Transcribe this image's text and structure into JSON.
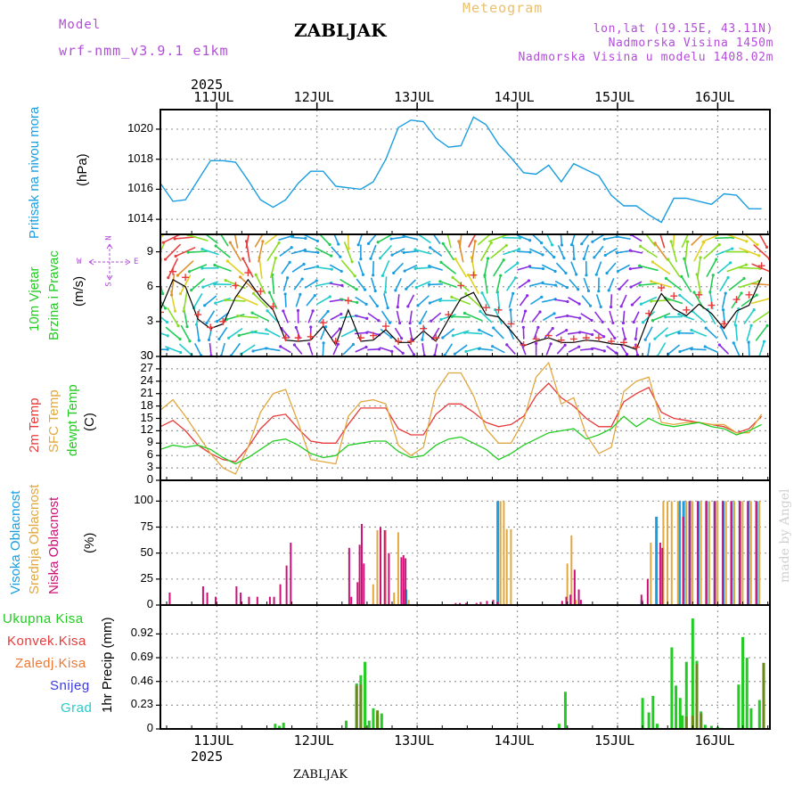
{
  "header": {
    "model_label": "Model",
    "model_name": "wrf-nmm_v3.9.1 e1km",
    "city": "ZABLJAK",
    "meteogram": "Meteogram",
    "coords": "lon,lat (19.15E, 43.11N)",
    "altitude": "Nadmorska Visina 1450m",
    "model_altitude": "Nadmorska Visina u modelu 1408.02m",
    "watermark": "made by Angel",
    "footer_city": "ZABLJAK"
  },
  "colors": {
    "purple": "#b34dd9",
    "orange": "#e0b060",
    "blue": "#1a9ee0",
    "red": "#e83a3a",
    "green": "#22cc22",
    "black": "#000000",
    "orange_sfc": "#e0a840",
    "magenta": "#cc1177",
    "olive": "#6a8a18",
    "dark_green": "#556b1a"
  },
  "time_axis": {
    "year": "2025",
    "days": [
      "11JUL",
      "12JUL",
      "13JUL",
      "14JUL",
      "15JUL",
      "16JUL"
    ]
  },
  "panels": {
    "pressure": {
      "title": "Pritisak na nivou mora",
      "unit": "(hPa)",
      "ticks": [
        "1014",
        "1016",
        "1018",
        "1020"
      ]
    },
    "wind": {
      "title_line1": "10m Vjetar",
      "title_line2": "Brzina i Pravac",
      "unit": "(m/s)",
      "ticks": [
        "0",
        "3",
        "6",
        "9"
      ],
      "compass_n": "N",
      "compass_w": "W",
      "compass_e": "E",
      "compass_s": "S"
    },
    "temperature": {
      "line1": "2m Temp",
      "line2": "SFC Temp",
      "line3": "dewpt Temp",
      "unit": "(C)",
      "ticks": [
        "0",
        "3",
        "6",
        "9",
        "12",
        "15",
        "18",
        "21",
        "24",
        "27",
        "30"
      ]
    },
    "clouds": {
      "line1": "Visoka Oblacnost",
      "line2": "Srednja Oblacnost",
      "line3": "Niska Oblacnost",
      "unit": "(%)",
      "ticks": [
        "0",
        "25",
        "50",
        "75",
        "100"
      ]
    },
    "precip": {
      "legend": [
        "Ukupna Kisa",
        "Konvek.Kisa",
        "Zaledj.Kisa",
        "Snijeg",
        "Grad"
      ],
      "unit": "1hr Precip (mm)",
      "ticks": [
        "0",
        "0.23",
        "0.46",
        "0.69",
        "0.92"
      ]
    }
  },
  "chart_data": [
    {
      "type": "line",
      "title": "Pritisak na nivou mora",
      "ylabel": "(hPa)",
      "ylim": [
        1013.0,
        1021.3
      ],
      "x": [
        0,
        3,
        6,
        9,
        12,
        15,
        18,
        21,
        24,
        27,
        30,
        33,
        36,
        39,
        42,
        45,
        48,
        51,
        54,
        57,
        60,
        63,
        66,
        69,
        72,
        75,
        78,
        81,
        84,
        87,
        90,
        93,
        96,
        99,
        102,
        105,
        108,
        111,
        114,
        117,
        120,
        123,
        126,
        129,
        132,
        135,
        138,
        141,
        144
      ],
      "series": [
        {
          "name": "",
          "values": [
            1016.4,
            1015.2,
            1015.3,
            1016.6,
            1017.9,
            1017.9,
            1017.8,
            1016.6,
            1015.3,
            1014.8,
            1015.3,
            1016.4,
            1017.2,
            1017.2,
            1016.2,
            1016.1,
            1016.0,
            1016.5,
            1018.0,
            1020.1,
            1020.6,
            1020.5,
            1019.4,
            1018.8,
            1018.9,
            1020.8,
            1020.3,
            1019.0,
            1018.1,
            1017.1,
            1017.0,
            1017.6,
            1016.5,
            1017.7,
            1017.3,
            1016.9,
            1015.6,
            1014.9,
            1014.9,
            1014.3,
            1013.8,
            1015.4,
            1015.4,
            1015.2,
            1015.0,
            1015.7,
            1015.6,
            1014.7,
            1014.7
          ]
        }
      ]
    },
    {
      "type": "line",
      "title": "10m Vjetar Brzina i Pravac",
      "ylabel": "(m/s)",
      "ylim": [
        0,
        10.5
      ],
      "x": [
        0,
        3,
        6,
        9,
        12,
        15,
        18,
        21,
        24,
        27,
        30,
        33,
        36,
        39,
        42,
        45,
        48,
        51,
        54,
        57,
        60,
        63,
        66,
        69,
        72,
        75,
        78,
        81,
        84,
        87,
        90,
        93,
        96,
        99,
        102,
        105,
        108,
        111,
        114,
        117,
        120,
        123,
        126,
        129,
        132,
        135,
        138,
        141,
        144
      ],
      "series": [
        {
          "name": "",
          "values": [
            4.0,
            6.6,
            6.0,
            3.2,
            2.4,
            2.8,
            5.1,
            6.6,
            5.1,
            4.0,
            1.4,
            1.3,
            1.4,
            2.6,
            1.0,
            4.0,
            1.3,
            1.4,
            2.3,
            1.2,
            1.2,
            2.2,
            1.3,
            3.2,
            5.0,
            5.5,
            3.6,
            3.4,
            2.2,
            0.9,
            1.3,
            1.6,
            1.2,
            1.2,
            1.4,
            1.3,
            1.1,
            1.0,
            0.6,
            3.4,
            5.4,
            4.1,
            3.5,
            4.5,
            3.7,
            2.4,
            3.9,
            4.4,
            6.8
          ]
        },
        {
          "name": "",
          "values": [
            3.8,
            7.3,
            6.8,
            3.6,
            2.5,
            3.0,
            6.1,
            7.2,
            5.6,
            4.3,
            1.6,
            1.6,
            1.7,
            2.9,
            1.3,
            4.8,
            1.6,
            1.8,
            2.6,
            1.3,
            1.3,
            2.4,
            1.6,
            3.6,
            6.1,
            7.0,
            4.2,
            4.0,
            2.8,
            1.0,
            1.5,
            1.8,
            1.4,
            1.5,
            1.6,
            1.6,
            1.3,
            1.2,
            0.8,
            3.7,
            5.9,
            5.2,
            4.0,
            5.3,
            4.4,
            2.8,
            4.9,
            5.3,
            7.8
          ]
        }
      ]
    },
    {
      "type": "line",
      "title": "",
      "ylabel": "(C)",
      "ylim": [
        0,
        30
      ],
      "x": [
        0,
        3,
        6,
        9,
        12,
        15,
        18,
        21,
        24,
        27,
        30,
        33,
        36,
        39,
        42,
        45,
        48,
        51,
        54,
        57,
        60,
        63,
        66,
        69,
        72,
        75,
        78,
        81,
        84,
        87,
        90,
        93,
        96,
        99,
        102,
        105,
        108,
        111,
        114,
        117,
        120,
        123,
        126,
        129,
        132,
        135,
        138,
        141,
        144
      ],
      "series": [
        {
          "name": "2m Temp",
          "values": [
            13.0,
            14.5,
            12.0,
            8.5,
            6.5,
            5.0,
            4.5,
            8.0,
            12.5,
            15.5,
            16.0,
            12.5,
            9.5,
            9.0,
            9.0,
            13.5,
            17.5,
            17.5,
            17.5,
            12.5,
            11.0,
            11.0,
            16.0,
            18.5,
            18.5,
            16.5,
            14.0,
            13.0,
            13.5,
            15.5,
            20.5,
            23.5,
            20.0,
            18.0,
            15.0,
            13.0,
            13.0,
            19.0,
            21.0,
            22.5,
            16.5,
            15.0,
            14.5,
            14.0,
            13.5,
            13.0,
            11.5,
            12.5,
            15.5
          ]
        },
        {
          "name": "SFC Temp",
          "values": [
            17.0,
            19.5,
            15.5,
            11.0,
            6.5,
            3.0,
            1.5,
            8.0,
            16.5,
            21.0,
            22.0,
            14.0,
            5.0,
            4.5,
            4.0,
            15.5,
            19.0,
            19.5,
            18.5,
            8.5,
            6.0,
            8.0,
            21.5,
            26.0,
            26.0,
            20.5,
            12.5,
            9.0,
            9.0,
            14.5,
            25.0,
            28.5,
            18.5,
            20.0,
            11.0,
            6.5,
            8.0,
            21.5,
            24.0,
            25.0,
            14.0,
            13.5,
            14.0,
            14.0,
            13.5,
            13.5,
            11.5,
            11.5,
            16.0
          ]
        },
        {
          "name": "dewpt Temp",
          "values": [
            7.5,
            8.5,
            8.0,
            8.5,
            7.5,
            5.5,
            4.0,
            5.5,
            7.5,
            9.5,
            10.0,
            8.5,
            6.5,
            5.5,
            6.0,
            8.5,
            9.0,
            9.5,
            9.5,
            7.0,
            5.5,
            6.0,
            8.5,
            10.0,
            10.5,
            9.0,
            7.5,
            5.0,
            6.5,
            8.5,
            10.0,
            11.5,
            12.0,
            12.5,
            10.0,
            11.0,
            12.5,
            15.5,
            13.0,
            15.0,
            13.5,
            13.0,
            13.5,
            14.0,
            13.0,
            12.5,
            11.0,
            12.0,
            13.5
          ]
        }
      ]
    },
    {
      "type": "bar",
      "title": "",
      "ylabel": "(%)",
      "ylim": [
        0,
        100
      ],
      "series": [
        {
          "name": "Visoka Oblacnost",
          "x": [
            58.5,
            80.5,
            115.0,
            118.5,
            124.0,
            125.0,
            126.5,
            128.5,
            130.5,
            132.5,
            134.5,
            136.5,
            138.5,
            140.5,
            142.5
          ],
          "values": [
            15,
            100,
            5,
            85,
            100,
            100,
            100,
            100,
            100,
            100,
            100,
            100,
            100,
            100,
            100
          ]
        },
        {
          "name": "Srednja Oblacnost",
          "x": [
            50.5,
            51.5,
            53.5,
            55.5,
            56.5,
            58.0,
            59.0,
            81.0,
            81.8,
            82.5,
            83.5,
            97.0,
            98.0,
            99.0,
            117.0,
            120.0,
            121.0,
            122.0,
            123.5,
            125.5,
            127.0,
            129.0,
            131.0,
            133.0,
            135.0,
            137.0,
            139.0,
            141.0,
            143.0
          ],
          "values": [
            20,
            72,
            72,
            12,
            70,
            15,
            5,
            100,
            100,
            73,
            73,
            40,
            67,
            5,
            60,
            100,
            100,
            100,
            100,
            100,
            100,
            100,
            100,
            100,
            100,
            100,
            100,
            100,
            100
          ]
        },
        {
          "name": "Niska Oblacnost",
          "x": [
            1.5,
            9.5,
            10.5,
            12.5,
            17.5,
            18.5,
            20.5,
            22.5,
            25.5,
            26.5,
            28.0,
            29.5,
            30.5,
            44.5,
            45.0,
            46.5,
            47.0,
            47.5,
            48.0,
            52.0,
            53.0,
            54.0,
            57.0,
            57.5,
            58.0,
            70.0,
            71.0,
            72.5,
            75.0,
            76.0,
            77.5,
            79.0,
            80.0,
            95.5,
            96.5,
            97.5,
            98.5,
            99.5,
            100.0,
            114.5,
            116.0,
            119.0,
            119.5,
            124.5,
            126.0,
            128.0,
            130.0,
            132.0,
            134.0,
            136.0,
            138.0,
            140.0,
            142.0
          ],
          "values": [
            12,
            18,
            12,
            8,
            18,
            12,
            8,
            8,
            8,
            8,
            20,
            38,
            60,
            55,
            8,
            22,
            58,
            78,
            40,
            75,
            72,
            50,
            46,
            48,
            45,
            2,
            2,
            2,
            2,
            3,
            4,
            5,
            3,
            4,
            8,
            10,
            34,
            15,
            5,
            10,
            25,
            60,
            55,
            85,
            100,
            100,
            100,
            100,
            100,
            100,
            100,
            100,
            100
          ]
        }
      ]
    },
    {
      "type": "bar",
      "title": "",
      "ylabel": "1hr Precip (mm)",
      "ylim": [
        0,
        1.1
      ],
      "series": [
        {
          "name": "Ukupna Kisa",
          "x": [
            27.5,
            28.5,
            29.5,
            44.5,
            47.0,
            48.0,
            49.0,
            50.0,
            51.0,
            52.0,
            53.0,
            95.5,
            97.0,
            115.5,
            117.0,
            118.0,
            119.0,
            122.5,
            123.5,
            124.5,
            125.0,
            126.0,
            127.5,
            128.5,
            129.5,
            130.5,
            132.0,
            133.5,
            134.5,
            138.5,
            139.5,
            140.5,
            141.5,
            143.5,
            144.5
          ],
          "values": [
            0.05,
            0.03,
            0.06,
            0.08,
            0.44,
            0.52,
            0.65,
            0.08,
            0.2,
            0.14,
            0.15,
            0.05,
            0.36,
            0.3,
            0.16,
            0.32,
            0.05,
            0.79,
            0.42,
            0.3,
            0.13,
            0.65,
            1.07,
            0.66,
            0.17,
            0.04,
            0.03,
            0.02,
            0.01,
            0.43,
            0.89,
            0.69,
            0.2,
            0.28,
            0.64
          ]
        },
        {
          "name": "Konvek.Kisa",
          "x": [
            47.0,
            48.0,
            49.0,
            52.0,
            126.0,
            127.5,
            128.5,
            129.5,
            144.5
          ],
          "values": [
            0.42,
            0.43,
            0.02,
            0.18,
            0.12,
            0.13,
            0.63,
            0.15,
            0.64
          ]
        }
      ]
    }
  ]
}
